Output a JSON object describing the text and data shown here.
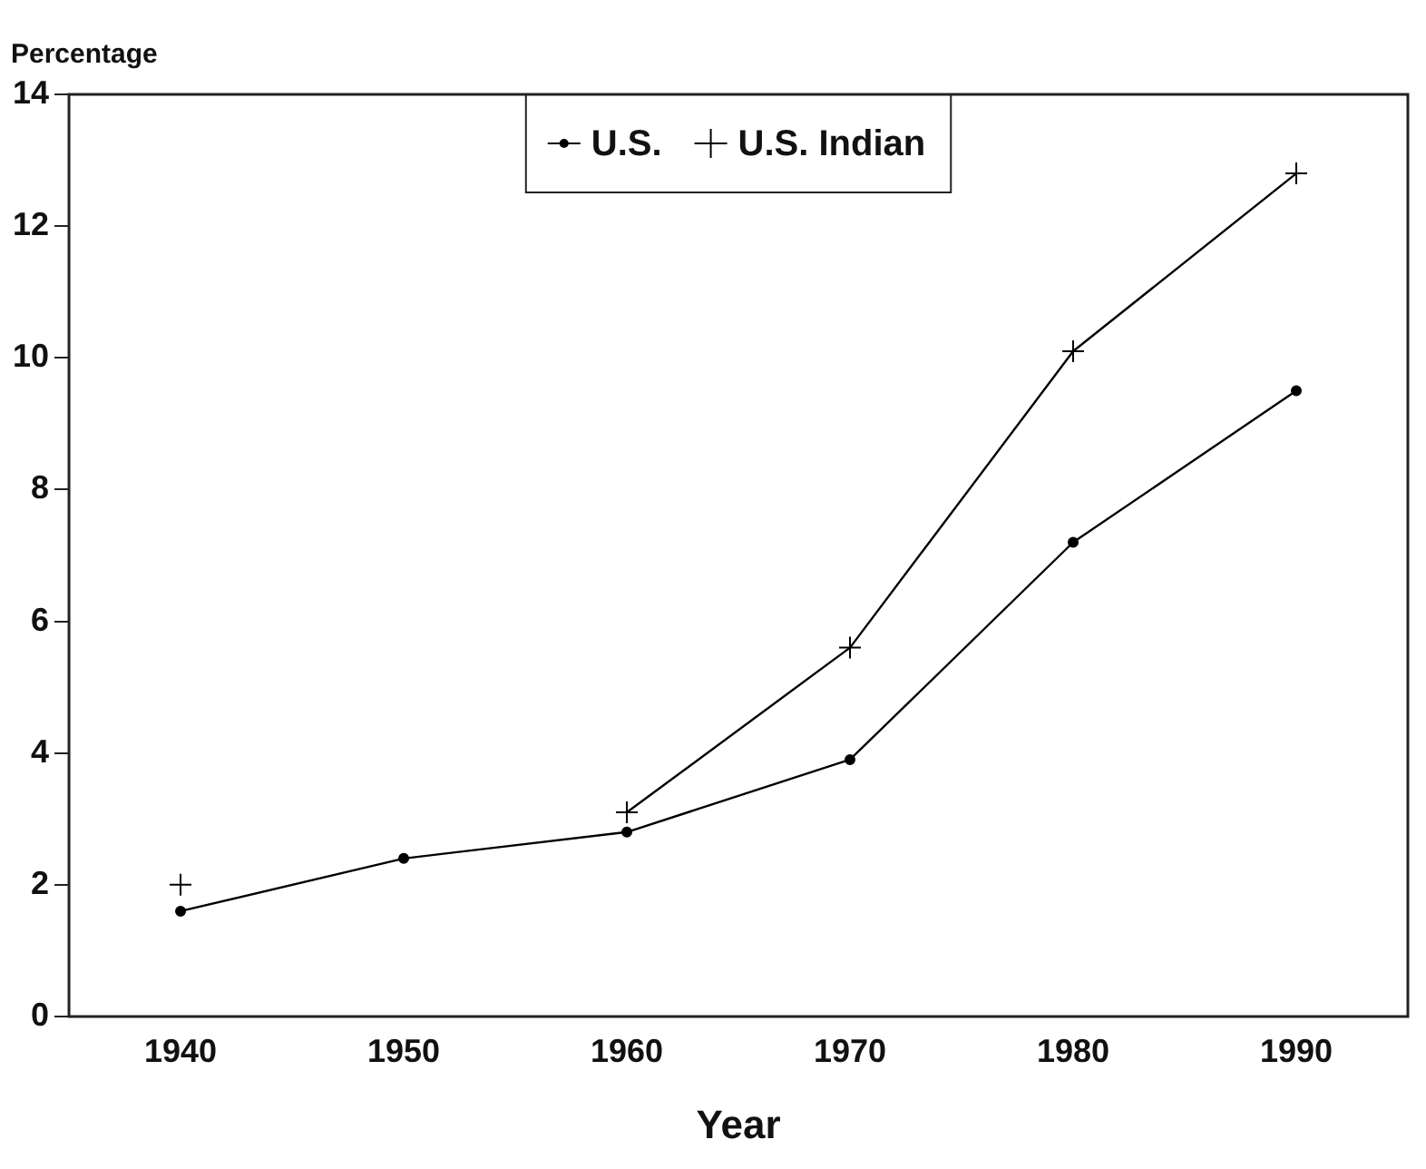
{
  "chart_data": {
    "type": "line",
    "xlabel": "Year",
    "ylabel": "Percentage",
    "categories": [
      "1940",
      "1950",
      "1960",
      "1970",
      "1980",
      "1990"
    ],
    "series": [
      {
        "name": "U.S.",
        "color": "#000000",
        "marker": "circle",
        "values": [
          1.6,
          2.4,
          2.8,
          3.9,
          7.2,
          9.5
        ]
      },
      {
        "name": "U.S. Indian",
        "color": "#000000",
        "marker": "cross",
        "values": [
          null,
          null,
          3.1,
          5.6,
          10.1,
          12.8
        ]
      },
      {
        "type": "scatter",
        "color": "#000000",
        "marker": "cross",
        "values": [
          2.0,
          null,
          null,
          null,
          null,
          null
        ]
      }
    ],
    "ylim": [
      0,
      14
    ],
    "yticks": [
      0,
      2,
      4,
      6,
      8,
      10,
      12,
      14
    ],
    "grid": false,
    "legend": "top",
    "line_style": "solid"
  }
}
